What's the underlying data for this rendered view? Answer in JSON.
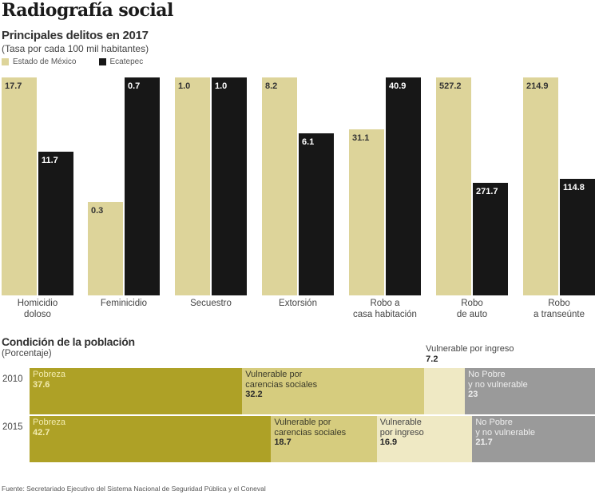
{
  "header": {
    "title": "Radiografía social"
  },
  "chart_data": [
    {
      "type": "bar",
      "title": "Principales delitos en 2017",
      "subtitle": "(Tasa por cada 100 mil habitantes)",
      "categories": [
        "Homicidio doloso",
        "Feminicidio",
        "Secuestro",
        "Extorsión",
        "Robo a casa habitación",
        "Robo de auto",
        "Robo a transeúnte"
      ],
      "category_lines": [
        [
          "Homicidio",
          "doloso"
        ],
        [
          "Feminicidio"
        ],
        [
          "Secuestro"
        ],
        [
          "Extorsión"
        ],
        [
          "Robo a",
          "casa habitación"
        ],
        [
          "Robo",
          "de auto"
        ],
        [
          "Robo",
          "a transeúnte"
        ]
      ],
      "series": [
        {
          "name": "Estado de México",
          "color": "#ddd49a",
          "values": [
            17.7,
            0.3,
            1.0,
            8.2,
            31.1,
            527.2,
            214.9
          ],
          "labels": [
            "17.7",
            "0.3",
            "1.0",
            "8.2",
            "31.1",
            "527.2",
            "214.9"
          ]
        },
        {
          "name": "Ecatepec",
          "color": "#171717",
          "values": [
            11.7,
            0.7,
            1.0,
            6.1,
            40.9,
            271.7,
            114.8
          ],
          "labels": [
            "11.7",
            "0.7",
            "1.0",
            "6.1",
            "40.9",
            "271.7",
            "114.8"
          ]
        }
      ],
      "scaling": "each category pair scaled independently to its own maximum",
      "legend": "top-left",
      "grid": false,
      "xlabel": "",
      "ylabel": ""
    },
    {
      "type": "bar",
      "subtype": "stacked-horizontal-100",
      "title": "Condición de la población",
      "subtitle": "(Porcentaje)",
      "categories": [
        "2010",
        "2015"
      ],
      "series": [
        {
          "name": "Pobreza",
          "color": "#aea126",
          "text_color": "#f3ecb0",
          "values": [
            37.6,
            42.7
          ],
          "labels": [
            "37.6",
            "42.7"
          ],
          "lines": [
            [
              "Pobreza"
            ],
            [
              "Pobreza"
            ]
          ]
        },
        {
          "name": "Vulnerable por carencias sociales",
          "color": "#d6cc7e",
          "text_color": "#3a3a2a",
          "values": [
            32.2,
            18.7
          ],
          "labels": [
            "32.2",
            "18.7"
          ],
          "lines": [
            [
              "Vulnerable por",
              "carencias sociales"
            ],
            [
              "Vulnerable por",
              "carencias sociales"
            ]
          ]
        },
        {
          "name": "Vulnerable por ingreso",
          "color": "#efe9c4",
          "text_color": "#444",
          "values": [
            7.2,
            16.9
          ],
          "labels": [
            "7.2",
            "16.9"
          ],
          "lines": [
            [
              "Vulnerable por ingreso"
            ],
            [
              "Vulnerable",
              "por ingreso"
            ]
          ]
        },
        {
          "name": "No Pobre y no vulnerable",
          "color": "#9a9a9a",
          "text_color": "#eeeeee",
          "values": [
            23,
            21.7
          ],
          "labels": [
            "23",
            "21.7"
          ],
          "lines": [
            [
              "No Pobre",
              "y no vulnerable"
            ],
            [
              "No Pobre",
              "y no vulnerable"
            ]
          ]
        }
      ],
      "xlim": [
        0,
        100
      ]
    }
  ],
  "source": "Fuente: Secretariado Ejecutivo del Sistema Nacional de Seguridad Pública y el Coneval"
}
